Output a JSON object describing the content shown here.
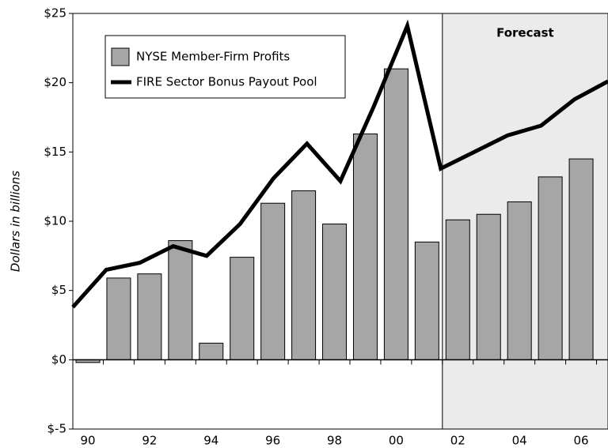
{
  "chart_data": {
    "type": "bar",
    "y_label": "Dollars in billions",
    "annotation": "Forecast",
    "categories": [
      "90",
      null,
      "92",
      null,
      "94",
      null,
      "96",
      null,
      "98",
      null,
      "00",
      null,
      "02",
      null,
      "04",
      null,
      "06"
    ],
    "series": [
      {
        "name": "NYSE Member-Firm Profits",
        "type": "bar",
        "color": "#a6a6a6",
        "values": [
          -0.2,
          5.9,
          6.2,
          8.6,
          1.2,
          7.4,
          11.3,
          12.2,
          9.8,
          16.3,
          21.0,
          8.5,
          10.1,
          10.5,
          11.4,
          13.2,
          14.5
        ]
      },
      {
        "name": "FIRE Sector Bonus Payout Pool",
        "type": "line",
        "color": "#000000",
        "values": [
          3.8,
          6.5,
          7.0,
          8.2,
          7.5,
          9.8,
          13.1,
          15.6,
          12.9,
          18.3,
          24.1,
          13.8,
          15.0,
          16.2,
          16.9,
          18.8,
          20.1
        ]
      }
    ],
    "ylim": [
      -5,
      25
    ],
    "yticks": [
      {
        "value": -5,
        "label": "$-5"
      },
      {
        "value": 0,
        "label": "$0"
      },
      {
        "value": 5,
        "label": "$5"
      },
      {
        "value": 10,
        "label": "$10"
      },
      {
        "value": 15,
        "label": "$15"
      },
      {
        "value": 20,
        "label": "$20"
      },
      {
        "value": 25,
        "label": "$25"
      }
    ]
  }
}
